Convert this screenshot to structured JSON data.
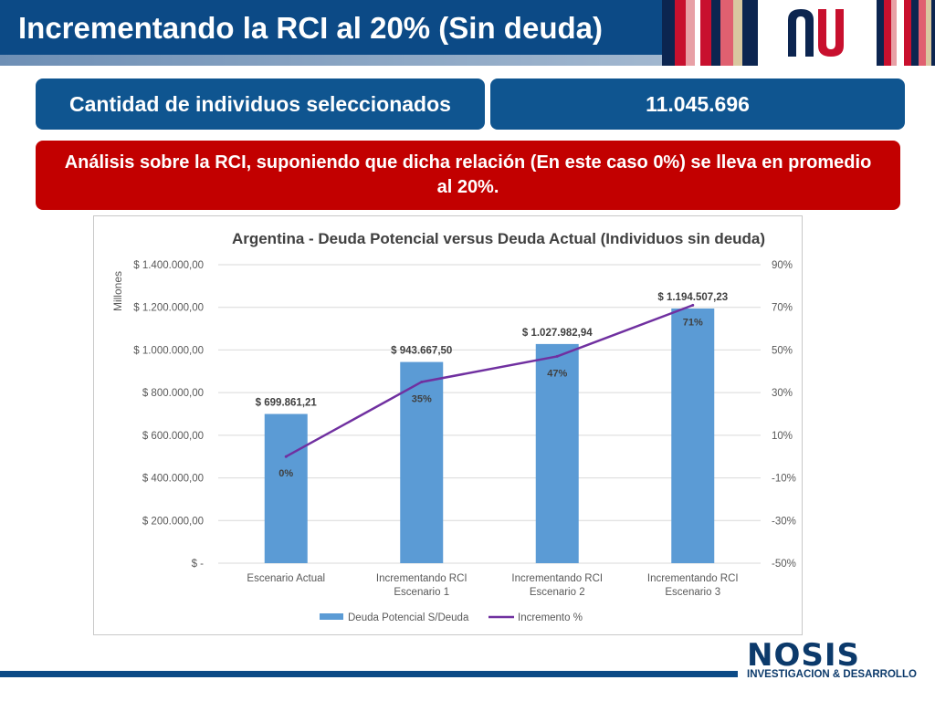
{
  "header": {
    "title": "Incrementando la RCI al 20% (Sin deuda)",
    "stripe_colors": [
      "#0c2550",
      "#c8102e",
      "#e8a0a6",
      "#ffffff",
      "#c8102e",
      "#0c2550",
      "#e06070",
      "#d9c8a0",
      "#0c2550"
    ]
  },
  "summary": {
    "label": "Cantidad de individuos seleccionados",
    "value": "11.045.696",
    "analysis": "Análisis sobre la RCI, suponiendo que dicha relación (En este caso 0%) se lleva en promedio al 20%."
  },
  "colors": {
    "primary_blue": "#0f5590",
    "alert_red": "#c20000",
    "bar": "#5b9bd5",
    "line": "#7030a0"
  },
  "chart_data": {
    "type": "bar",
    "title": "Argentina - Deuda Potencial versus Deuda Actual (Individuos sin deuda)",
    "ylabel": "Millones",
    "categories": [
      [
        "Escenario Actual"
      ],
      [
        "Incrementando RCI",
        "Escenario 1"
      ],
      [
        "Incrementando RCI",
        "Escenario 2"
      ],
      [
        "Incrementando RCI",
        "Escenario 3"
      ]
    ],
    "series": [
      {
        "name": "Deuda Potencial S/Deuda",
        "kind": "bar",
        "axis": "left",
        "values": [
          699861.21,
          943667.5,
          1027982.94,
          1194507.23
        ],
        "labels": [
          "$ 699.861,21",
          "$ 943.667,50",
          "$ 1.027.982,94",
          "$ 1.194.507,23"
        ]
      },
      {
        "name": "Incremento %",
        "kind": "line",
        "axis": "right",
        "values": [
          0,
          35,
          47,
          71
        ],
        "labels": [
          "0%",
          "35%",
          "47%",
          "71%"
        ]
      }
    ],
    "ylim": [
      0,
      1400000
    ],
    "y_ticks": [
      0,
      200000,
      400000,
      600000,
      800000,
      1000000,
      1200000,
      1400000
    ],
    "y_tick_labels": [
      "$ -",
      "$ 200.000,00",
      "$ 400.000,00",
      "$ 600.000,00",
      "$ 800.000,00",
      "$ 1.000.000,00",
      "$ 1.200.000,00",
      "$ 1.400.000,00"
    ],
    "y2lim": [
      -50,
      90
    ],
    "y2_ticks": [
      -50,
      -30,
      -10,
      10,
      30,
      50,
      70,
      90
    ],
    "y2_tick_labels": [
      "-50%",
      "-30%",
      "-10%",
      "10%",
      "30%",
      "50%",
      "70%",
      "90%"
    ],
    "grid": true,
    "legend": "bottom"
  },
  "footer": {
    "brand": "NOSIS",
    "division": "INVESTIGACION & DESARROLLO"
  }
}
